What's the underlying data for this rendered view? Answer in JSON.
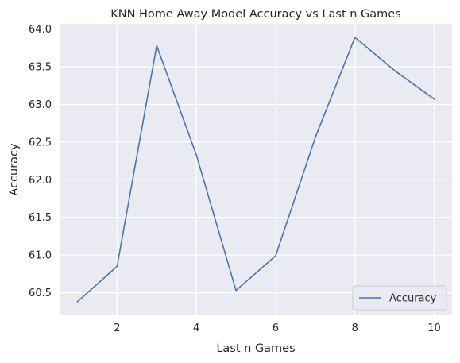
{
  "chart_data": {
    "type": "line",
    "title": "KNN Home Away Model Accuracy vs Last n Games",
    "xlabel": "Last n Games",
    "ylabel": "Accuracy",
    "x": [
      1,
      2,
      3,
      4,
      5,
      6,
      7,
      8,
      9,
      10
    ],
    "series": [
      {
        "name": "Accuracy",
        "values": [
          60.38,
          60.85,
          63.78,
          62.33,
          60.53,
          60.99,
          62.56,
          63.89,
          63.45,
          63.07
        ]
      }
    ],
    "xlim": [
      0.55,
      10.45
    ],
    "ylim": [
      60.2,
      64.07
    ],
    "xticks": [
      2,
      4,
      6,
      8,
      10
    ],
    "xtick_labels": [
      "2",
      "4",
      "6",
      "8",
      "10"
    ],
    "yticks": [
      60.5,
      61.0,
      61.5,
      62.0,
      62.5,
      63.0,
      63.5,
      64.0
    ],
    "ytick_labels": [
      "60.5",
      "61.0",
      "61.5",
      "62.0",
      "62.5",
      "63.0",
      "63.5",
      "64.0"
    ],
    "grid": true,
    "legend": {
      "position": "lower right"
    },
    "colors": {
      "plot_background": "#eaeaf2",
      "grid": "#ffffff",
      "line": "#4c72b0",
      "legend_background": "#eaeaf2",
      "legend_border": "#cccccc",
      "text": "#262626"
    }
  }
}
